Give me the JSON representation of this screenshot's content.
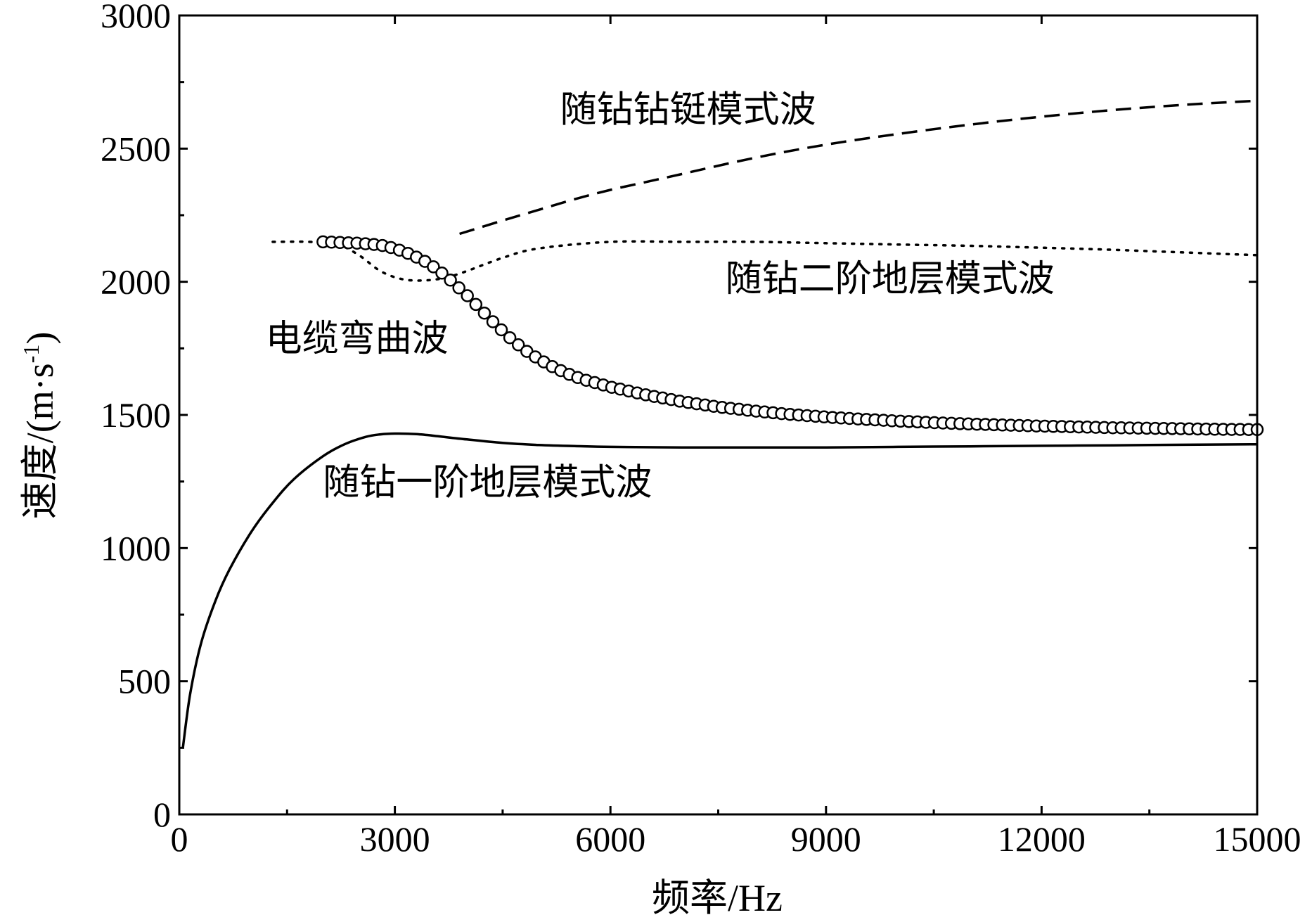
{
  "chart_data": {
    "type": "line",
    "title": "",
    "xlabel": "频率/Hz",
    "ylabel_main": "速度/(m·s",
    "ylabel_sup": "-1",
    "ylabel_close": ")",
    "xlim": [
      0,
      15000
    ],
    "ylim": [
      0,
      3000
    ],
    "xticks": [
      0,
      3000,
      6000,
      9000,
      12000,
      15000
    ],
    "xtick_labels": [
      "0",
      "3000",
      "6000",
      "9000",
      "12000",
      "15000"
    ],
    "yticks": [
      0,
      500,
      1000,
      1500,
      2000,
      2500,
      3000
    ],
    "ytick_labels": [
      "0",
      "500",
      "1000",
      "1500",
      "2000",
      "2500",
      "3000"
    ],
    "grid": false,
    "series": [
      {
        "name": "随钻一阶地层模式波",
        "style": "solid",
        "x": [
          50,
          150,
          300,
          500,
          700,
          1000,
          1300,
          1600,
          2000,
          2300,
          2600,
          2800,
          3000,
          3300,
          3600,
          4000,
          4500,
          5000,
          5500,
          6000,
          7000,
          8000,
          9000,
          10000,
          11000,
          12000,
          13000,
          14000,
          15000
        ],
        "values": [
          250,
          450,
          640,
          800,
          920,
          1060,
          1170,
          1260,
          1345,
          1390,
          1418,
          1427,
          1430,
          1428,
          1420,
          1408,
          1395,
          1387,
          1383,
          1380,
          1378,
          1378,
          1378,
          1380,
          1382,
          1384,
          1386,
          1388,
          1390
        ]
      },
      {
        "name": "随钻二阶地层模式波",
        "style": "dotted",
        "x": [
          1300,
          1800,
          2200,
          2500,
          2800,
          3100,
          3400,
          3700,
          4000,
          4500,
          5000,
          6000,
          7000,
          8000,
          9000,
          10000,
          11000,
          12000,
          13000,
          14000,
          15000
        ],
        "values": [
          2150,
          2150,
          2140,
          2100,
          2040,
          2010,
          2005,
          2015,
          2040,
          2090,
          2125,
          2150,
          2150,
          2150,
          2145,
          2140,
          2135,
          2128,
          2120,
          2110,
          2100
        ]
      },
      {
        "name": "随钻钻铤模式波",
        "style": "dashed",
        "x": [
          3900,
          4500,
          5000,
          5500,
          6000,
          6500,
          7000,
          8000,
          9000,
          10000,
          11000,
          12000,
          13000,
          14000,
          15000
        ],
        "values": [
          2180,
          2230,
          2270,
          2310,
          2345,
          2375,
          2405,
          2465,
          2515,
          2555,
          2590,
          2620,
          2645,
          2665,
          2680
        ]
      },
      {
        "name": "电缆弯曲波",
        "style": "circle-markers",
        "x": [
          2000,
          2500,
          2800,
          3000,
          3200,
          3400,
          3600,
          3800,
          4000,
          4200,
          4400,
          4600,
          4800,
          5000,
          5200,
          5400,
          5600,
          5800,
          6000,
          6500,
          7000,
          7500,
          8000,
          8500,
          9000,
          9500,
          10000,
          10500,
          11000,
          11500,
          12000,
          12500,
          13000,
          13500,
          14000,
          14500,
          15000
        ],
        "values": [
          2150,
          2145,
          2138,
          2125,
          2105,
          2080,
          2045,
          2000,
          1950,
          1895,
          1840,
          1790,
          1745,
          1710,
          1680,
          1655,
          1635,
          1620,
          1605,
          1575,
          1550,
          1530,
          1515,
          1502,
          1492,
          1484,
          1477,
          1471,
          1466,
          1462,
          1458,
          1455,
          1452,
          1450,
          1448,
          1446,
          1445
        ]
      }
    ],
    "annotations": [
      {
        "text": "随钻钻铤模式波",
        "x": 5300,
        "y": 2600
      },
      {
        "text": "随钻二阶地层模式波",
        "x": 7600,
        "y": 1965
      },
      {
        "text": "电缆弯曲波",
        "x": 1200,
        "y": 1740
      },
      {
        "text": "随钻一阶地层模式波",
        "x": 2000,
        "y": 1200
      }
    ]
  }
}
